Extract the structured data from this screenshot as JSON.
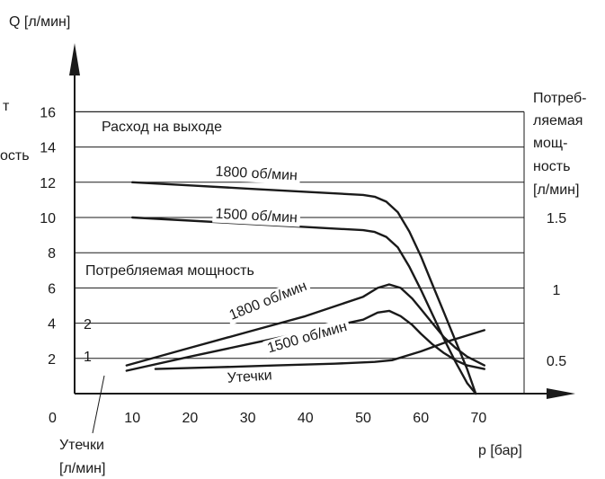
{
  "chart_data": {
    "type": "line",
    "ylabel": "Q [л/мин]",
    "xlabel": "p [бар]",
    "origin_label": "0",
    "xlim": [
      0,
      70
    ],
    "ylim": [
      0,
      16.5
    ],
    "x_ticks": [
      "10",
      "20",
      "30",
      "40",
      "50",
      "60",
      "70"
    ],
    "y_ticks_left": [
      "2",
      "4",
      "6",
      "8",
      "10",
      "12",
      "14",
      "16"
    ],
    "y_ticks_right": [
      "0.5",
      "1",
      "1.5"
    ],
    "inner_ticks": [
      "1",
      "2"
    ],
    "right_axis_label": [
      "Потреб-",
      "ляемая",
      "мощ-",
      "ность",
      "[л/мин]"
    ],
    "left_axis_fragments": [
      "т",
      "ость"
    ],
    "bottom_left_label": [
      "Утечки",
      "[л/мин]"
    ],
    "region_labels": {
      "flow": "Расход на выходе",
      "power": "Потребляемая мощность"
    },
    "series": [
      {
        "name": "1800 об/мин",
        "group": "flow",
        "x": [
          10,
          20,
          30,
          40,
          50,
          52,
          54,
          56,
          58,
          60,
          62,
          64,
          66,
          68,
          69.5
        ],
        "y": [
          12.0,
          11.82,
          11.64,
          11.46,
          11.28,
          11.18,
          10.9,
          10.3,
          9.2,
          7.8,
          6.2,
          4.6,
          3.0,
          1.4,
          0.0
        ]
      },
      {
        "name": "1500 об/мин",
        "group": "flow",
        "x": [
          10,
          20,
          30,
          40,
          50,
          52,
          54,
          56,
          58,
          60,
          62,
          64,
          66,
          68,
          69.5
        ],
        "y": [
          10.0,
          9.82,
          9.64,
          9.46,
          9.28,
          9.18,
          8.9,
          8.3,
          7.2,
          5.9,
          4.5,
          3.1,
          1.8,
          0.6,
          0.0
        ]
      },
      {
        "name": "1800 об/мин",
        "group": "power",
        "x": [
          9,
          20,
          30,
          40,
          50,
          52.5,
          54.5,
          56.5,
          58.5,
          60,
          62,
          64,
          66,
          68,
          71
        ],
        "y": [
          1.6,
          2.6,
          3.5,
          4.4,
          5.5,
          6.0,
          6.2,
          6.0,
          5.4,
          4.8,
          4.0,
          3.2,
          2.6,
          2.1,
          1.6
        ]
      },
      {
        "name": "1500 об/мин",
        "group": "power",
        "x": [
          9,
          20,
          30,
          40,
          50,
          52.5,
          54.5,
          56.5,
          58.5,
          60,
          62,
          64,
          66,
          68,
          71
        ],
        "y": [
          1.3,
          2.1,
          2.8,
          3.5,
          4.2,
          4.6,
          4.7,
          4.4,
          3.9,
          3.4,
          2.8,
          2.3,
          1.9,
          1.6,
          1.4
        ]
      },
      {
        "name": "Утечки",
        "group": "leakage",
        "x": [
          14,
          25,
          35,
          45,
          52,
          55,
          60,
          65,
          71
        ],
        "y": [
          1.4,
          1.5,
          1.6,
          1.7,
          1.8,
          1.9,
          2.4,
          3.0,
          3.6
        ]
      }
    ],
    "grid": true
  }
}
